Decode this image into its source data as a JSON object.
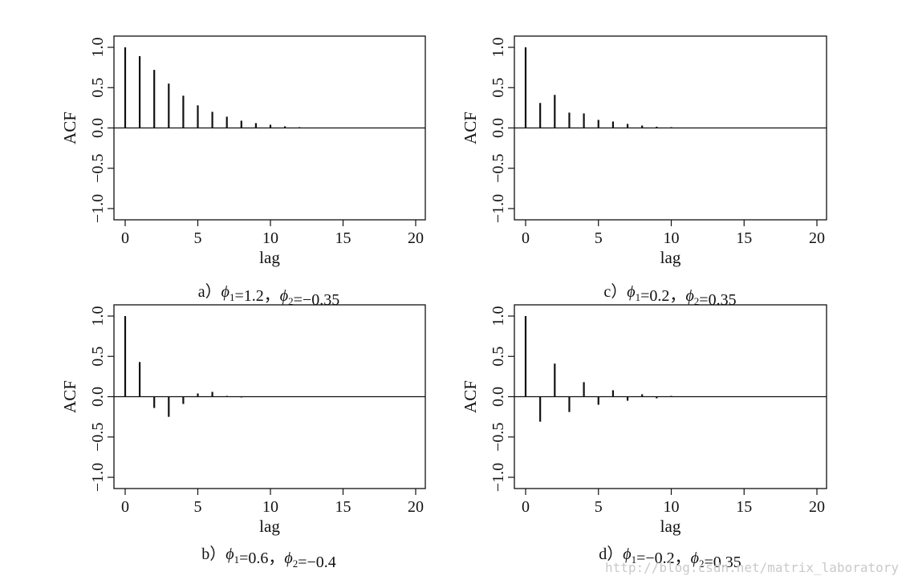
{
  "chart_data": [
    {
      "type": "bar",
      "subtype": "acf-stem",
      "caption": {
        "prefix": "a）",
        "p1": "=1.2，",
        "p2": "=−0.35"
      },
      "phi_symbol": "ϕ",
      "xlabel": "lag",
      "ylabel": "ACF",
      "xlim": [
        0,
        20
      ],
      "ylim": [
        -1.0,
        1.0
      ],
      "xticks": [
        "0",
        "5",
        "10",
        "15",
        "20"
      ],
      "yticks": [
        "−1.0",
        "−0.5",
        "0.0",
        "0.5",
        "1.0"
      ],
      "x": [
        0,
        1,
        2,
        3,
        4,
        5,
        6,
        7,
        8,
        9,
        10,
        11,
        12,
        13
      ],
      "values": [
        1.0,
        0.89,
        0.72,
        0.55,
        0.4,
        0.28,
        0.2,
        0.14,
        0.09,
        0.06,
        0.04,
        0.02,
        0.01,
        0.005
      ]
    },
    {
      "type": "bar",
      "subtype": "acf-stem",
      "caption": {
        "prefix": "c）",
        "p1": "=0.2，",
        "p2": "=0.35"
      },
      "phi_symbol": "ϕ",
      "xlabel": "lag",
      "ylabel": "ACF",
      "xlim": [
        0,
        20
      ],
      "ylim": [
        -1.0,
        1.0
      ],
      "xticks": [
        "0",
        "5",
        "10",
        "15",
        "20"
      ],
      "yticks": [
        "−1.0",
        "−0.5",
        "0.0",
        "0.5",
        "1.0"
      ],
      "x": [
        0,
        1,
        2,
        3,
        4,
        5,
        6,
        7,
        8,
        9,
        10
      ],
      "values": [
        1.0,
        0.31,
        0.41,
        0.19,
        0.18,
        0.1,
        0.08,
        0.05,
        0.03,
        0.015,
        0.01
      ]
    },
    {
      "type": "bar",
      "subtype": "acf-stem",
      "caption": {
        "prefix": "b）",
        "p1": "=0.6，",
        "p2": "=−0.4"
      },
      "phi_symbol": "ϕ",
      "xlabel": "lag",
      "ylabel": "ACF",
      "xlim": [
        0,
        20
      ],
      "ylim": [
        -1.0,
        1.0
      ],
      "xticks": [
        "0",
        "5",
        "10",
        "15",
        "20"
      ],
      "yticks": [
        "−1.0",
        "−0.5",
        "0.0",
        "0.5",
        "1.0"
      ],
      "x": [
        0,
        1,
        2,
        3,
        4,
        5,
        6,
        7,
        8
      ],
      "values": [
        1.0,
        0.43,
        -0.14,
        -0.25,
        -0.09,
        0.04,
        0.06,
        0.01,
        -0.01
      ]
    },
    {
      "type": "bar",
      "subtype": "acf-stem",
      "caption": {
        "prefix": "d）",
        "p1": "=−0.2，",
        "p2": "=0.35"
      },
      "phi_symbol": "ϕ",
      "xlabel": "lag",
      "ylabel": "ACF",
      "xlim": [
        0,
        20
      ],
      "ylim": [
        -1.0,
        1.0
      ],
      "xticks": [
        "0",
        "5",
        "10",
        "15",
        "20"
      ],
      "yticks": [
        "−1.0",
        "−0.5",
        "0.0",
        "0.5",
        "1.0"
      ],
      "x": [
        0,
        1,
        2,
        3,
        4,
        5,
        6,
        7,
        8,
        9,
        10
      ],
      "values": [
        1.0,
        -0.31,
        0.41,
        -0.19,
        0.18,
        -0.1,
        0.08,
        -0.05,
        0.03,
        -0.02,
        0.01
      ]
    }
  ],
  "watermark": "http://blog.csdn.net/matrix_laboratory",
  "colors": {
    "ink": "#111111",
    "background": "#ffffff",
    "watermark": "#c9c9c9"
  }
}
